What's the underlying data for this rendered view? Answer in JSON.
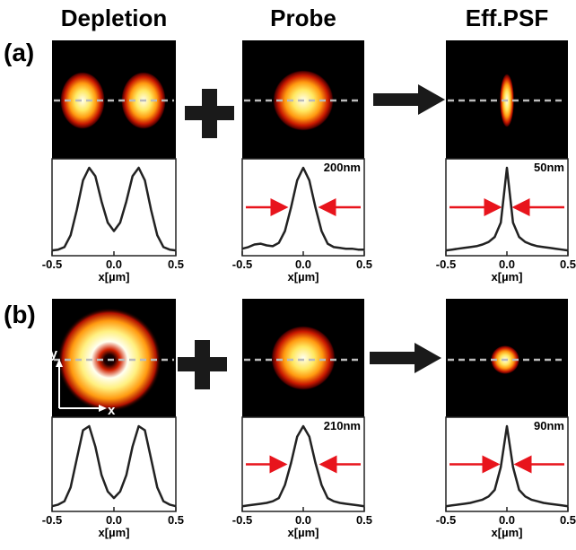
{
  "header": {
    "columns": [
      "Depletion",
      "Probe",
      "Eff.PSF"
    ]
  },
  "row_labels": [
    "(a)",
    "(b)"
  ],
  "axis_arrows": {
    "y": "y",
    "x": "x"
  },
  "chart_data": [
    {
      "type": "line",
      "x": [
        -0.5,
        -0.45,
        -0.4,
        -0.35,
        -0.3,
        -0.25,
        -0.2,
        -0.15,
        -0.1,
        -0.05,
        0,
        0.05,
        0.1,
        0.15,
        0.2,
        0.25,
        0.3,
        0.35,
        0.4,
        0.45,
        0.5
      ],
      "values": [
        0.02,
        0.03,
        0.06,
        0.2,
        0.5,
        0.85,
        1.0,
        0.9,
        0.6,
        0.35,
        0.25,
        0.35,
        0.6,
        0.9,
        1.0,
        0.85,
        0.5,
        0.2,
        0.06,
        0.03,
        0.02
      ],
      "xlim": [
        -0.5,
        0.5
      ],
      "ylim": [
        0,
        1
      ],
      "xticks": [
        -0.5,
        {
          "value": 0,
          "label": "0.0"
        },
        0.5
      ],
      "xlabel": "x[µm]"
    },
    {
      "type": "line",
      "x": [
        -0.5,
        -0.45,
        -0.4,
        -0.35,
        -0.3,
        -0.25,
        -0.2,
        -0.15,
        -0.1,
        -0.05,
        0,
        0.05,
        0.1,
        0.15,
        0.2,
        0.25,
        0.3,
        0.35,
        0.4,
        0.45,
        0.5
      ],
      "values": [
        0.04,
        0.06,
        0.09,
        0.1,
        0.08,
        0.07,
        0.11,
        0.25,
        0.53,
        0.85,
        1.0,
        0.85,
        0.53,
        0.25,
        0.1,
        0.06,
        0.05,
        0.04,
        0.04,
        0.03,
        0.03
      ],
      "xlim": [
        -0.5,
        0.5
      ],
      "ylim": [
        0,
        1
      ],
      "xticks": [
        -0.5,
        {
          "value": 0,
          "label": "0.0"
        },
        0.5
      ],
      "xlabel": "x[µm]",
      "annotation": "200nm"
    },
    {
      "type": "line",
      "x": [
        -0.5,
        -0.45,
        -0.4,
        -0.35,
        -0.3,
        -0.25,
        -0.2,
        -0.15,
        -0.1,
        -0.05,
        0,
        0.05,
        0.1,
        0.15,
        0.2,
        0.25,
        0.3,
        0.35,
        0.4,
        0.45,
        0.5
      ],
      "values": [
        0.02,
        0.03,
        0.04,
        0.05,
        0.06,
        0.07,
        0.09,
        0.12,
        0.18,
        0.35,
        1.0,
        0.35,
        0.18,
        0.12,
        0.09,
        0.07,
        0.06,
        0.05,
        0.04,
        0.03,
        0.02
      ],
      "xlim": [
        -0.5,
        0.5
      ],
      "ylim": [
        0,
        1
      ],
      "xticks": [
        -0.5,
        {
          "value": 0,
          "label": "0.0"
        },
        0.5
      ],
      "xlabel": "x[µm]",
      "annotation": "50nm"
    },
    {
      "type": "line",
      "x": [
        -0.5,
        -0.45,
        -0.4,
        -0.35,
        -0.3,
        -0.25,
        -0.2,
        -0.15,
        -0.1,
        -0.05,
        0,
        0.05,
        0.1,
        0.15,
        0.2,
        0.25,
        0.3,
        0.35,
        0.4,
        0.45,
        0.5
      ],
      "values": [
        0.02,
        0.04,
        0.08,
        0.25,
        0.6,
        0.95,
        1.0,
        0.75,
        0.4,
        0.2,
        0.12,
        0.2,
        0.4,
        0.75,
        1.0,
        0.95,
        0.6,
        0.25,
        0.08,
        0.04,
        0.02
      ],
      "xlim": [
        -0.5,
        0.5
      ],
      "ylim": [
        0,
        1
      ],
      "xticks": [
        -0.5,
        {
          "value": 0,
          "label": "0.0"
        },
        0.5
      ],
      "xlabel": "x[µm]"
    },
    {
      "type": "line",
      "x": [
        -0.5,
        -0.45,
        -0.4,
        -0.35,
        -0.3,
        -0.25,
        -0.2,
        -0.15,
        -0.1,
        -0.05,
        0,
        0.05,
        0.1,
        0.15,
        0.2,
        0.25,
        0.3,
        0.35,
        0.4,
        0.45,
        0.5
      ],
      "values": [
        0.02,
        0.03,
        0.04,
        0.05,
        0.06,
        0.08,
        0.12,
        0.28,
        0.55,
        0.87,
        1.0,
        0.87,
        0.55,
        0.28,
        0.12,
        0.08,
        0.06,
        0.05,
        0.04,
        0.03,
        0.02
      ],
      "xlim": [
        -0.5,
        0.5
      ],
      "ylim": [
        0,
        1
      ],
      "xticks": [
        -0.5,
        {
          "value": 0,
          "label": "0.0"
        },
        0.5
      ],
      "xlabel": "x[µm]",
      "annotation": "210nm"
    },
    {
      "type": "line",
      "x": [
        -0.5,
        -0.45,
        -0.4,
        -0.35,
        -0.3,
        -0.25,
        -0.2,
        -0.15,
        -0.1,
        -0.05,
        0,
        0.05,
        0.1,
        0.15,
        0.2,
        0.25,
        0.3,
        0.35,
        0.4,
        0.45,
        0.5
      ],
      "values": [
        0.02,
        0.03,
        0.04,
        0.05,
        0.06,
        0.08,
        0.1,
        0.14,
        0.22,
        0.5,
        1.0,
        0.5,
        0.22,
        0.14,
        0.1,
        0.08,
        0.06,
        0.05,
        0.04,
        0.03,
        0.02
      ],
      "xlim": [
        -0.5,
        0.5
      ],
      "ylim": [
        0,
        1
      ],
      "xticks": [
        -0.5,
        {
          "value": 0,
          "label": "0.0"
        },
        0.5
      ],
      "xlabel": "x[µm]",
      "annotation": "90nm"
    }
  ]
}
